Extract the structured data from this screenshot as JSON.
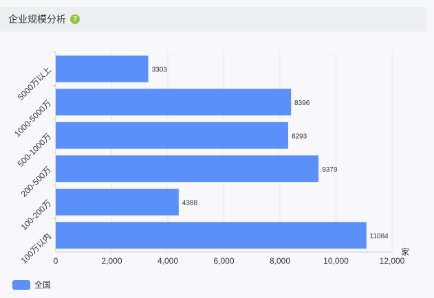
{
  "header": {
    "title": "企业规模分析",
    "help_icon": "question-circle-icon",
    "help_glyph": "?"
  },
  "colors": {
    "bar": "#5b8ff9",
    "accent": "#8dc63f"
  },
  "chart_data": {
    "type": "bar",
    "orientation": "horizontal",
    "categories": [
      "5000万以上",
      "1000-5000万",
      "500-1000万",
      "200-500万",
      "100-200万",
      "100万以内"
    ],
    "series": [
      {
        "name": "全国",
        "values": [
          3303,
          8396,
          8293,
          9379,
          4388,
          11084
        ]
      }
    ],
    "xlim": [
      0,
      12000
    ],
    "xticks": [
      0,
      2000,
      4000,
      6000,
      8000,
      10000,
      12000
    ],
    "xtick_labels": [
      "0",
      "2,000",
      "4,000",
      "6,000",
      "8,000",
      "10,000",
      "12,000"
    ],
    "unit": "家",
    "grid": true,
    "legend_position": "bottom-left"
  }
}
